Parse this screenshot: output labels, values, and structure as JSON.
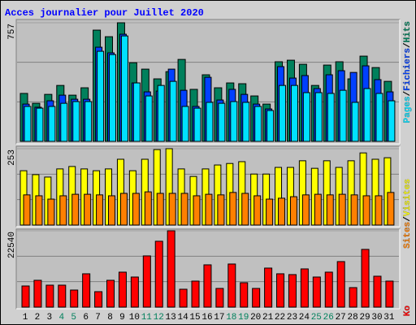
{
  "title": "Acces journalier pour Juillet 2020",
  "legend_separator": "/",
  "chart_data": [
    {
      "type": "bar",
      "ylim": [
        0,
        757
      ],
      "yticks": [
        757
      ],
      "series": [
        {
          "name": "Hits",
          "color": "#00805c",
          "values": [
            306,
            243,
            300,
            357,
            295,
            342,
            710,
            668,
            757,
            502,
            461,
            399,
            445,
            523,
            332,
            425,
            342,
            373,
            368,
            290,
            238,
            508,
            518,
            492,
            357,
            487,
            508,
            399,
            544,
            471,
            383
          ]
        },
        {
          "name": "Fichiers",
          "color": "#0040ff",
          "values": [
            238,
            218,
            259,
            295,
            269,
            269,
            601,
            565,
            684,
            373,
            316,
            321,
            461,
            326,
            223,
            409,
            264,
            332,
            300,
            238,
            207,
            477,
            404,
            420,
            337,
            425,
            451,
            440,
            482,
            394,
            316
          ]
        },
        {
          "name": "Pages",
          "color": "#00e0ff",
          "values": [
            223,
            212,
            223,
            243,
            254,
            254,
            575,
            554,
            673,
            373,
            290,
            357,
            383,
            223,
            212,
            249,
            243,
            254,
            249,
            223,
            197,
            357,
            357,
            311,
            311,
            306,
            326,
            249,
            337,
            306,
            259
          ]
        }
      ]
    },
    {
      "type": "bar",
      "ylim": [
        0,
        253
      ],
      "yticks": [
        253
      ],
      "series": [
        {
          "name": "Visites",
          "color": "#ffff00",
          "values": [
            180,
            167,
            159,
            186,
            194,
            186,
            180,
            186,
            218,
            180,
            218,
            250,
            253,
            186,
            161,
            186,
            199,
            204,
            210,
            169,
            169,
            191,
            191,
            213,
            188,
            213,
            191,
            213,
            239,
            218,
            223
          ]
        },
        {
          "name": "Sites",
          "color": "#ff8000",
          "values": [
            100,
            97,
            86,
            97,
            102,
            102,
            100,
            97,
            105,
            105,
            110,
            105,
            105,
            105,
            97,
            102,
            100,
            108,
            105,
            97,
            86,
            89,
            94,
            100,
            102,
            100,
            102,
            100,
            97,
            97,
            108
          ]
        }
      ]
    },
    {
      "type": "bar",
      "ylim": [
        0,
        22540
      ],
      "yticks": [
        22540
      ],
      "categories": [
        "1",
        "2",
        "3",
        "4",
        "5",
        "6",
        "7",
        "8",
        "9",
        "10",
        "11",
        "12",
        "13",
        "14",
        "15",
        "16",
        "17",
        "18",
        "19",
        "20",
        "21",
        "22",
        "23",
        "24",
        "25",
        "26",
        "27",
        "28",
        "29",
        "30",
        "31"
      ],
      "category_colors": [
        "#000000",
        "#000000",
        "#000000",
        "#00805c",
        "#00805c",
        "#000000",
        "#000000",
        "#000000",
        "#000000",
        "#000000",
        "#00805c",
        "#00805c",
        "#000000",
        "#000000",
        "#000000",
        "#000000",
        "#000000",
        "#00805c",
        "#00805c",
        "#000000",
        "#000000",
        "#000000",
        "#000000",
        "#000000",
        "#00805c",
        "#00805c",
        "#000000",
        "#000000",
        "#000000",
        "#000000",
        "#000000"
      ],
      "series": [
        {
          "name": "Ko",
          "color": "#ff0000",
          "values": [
            6240,
            7920,
            6480,
            6480,
            5040,
            9840,
            4560,
            7920,
            10320,
            8880,
            15120,
            19440,
            22540,
            5280,
            7680,
            12480,
            5520,
            12720,
            7200,
            5520,
            11520,
            9840,
            9600,
            11280,
            8880,
            10320,
            13440,
            5760,
            17040,
            9120,
            7680
          ]
        }
      ]
    }
  ]
}
